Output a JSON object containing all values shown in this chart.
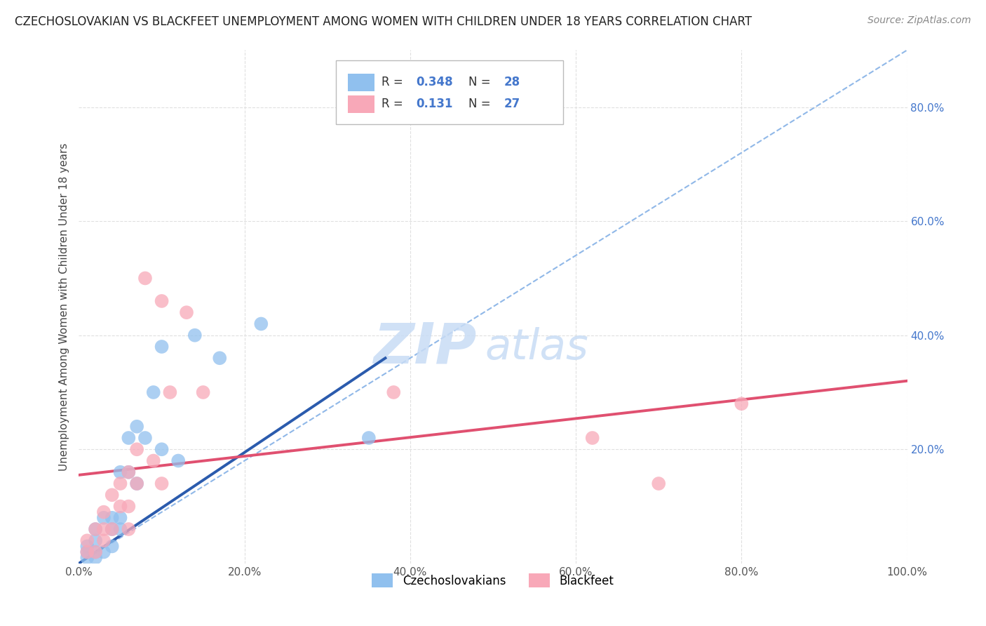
{
  "title": "CZECHOSLOVAKIAN VS BLACKFEET UNEMPLOYMENT AMONG WOMEN WITH CHILDREN UNDER 18 YEARS CORRELATION CHART",
  "source": "Source: ZipAtlas.com",
  "ylabel": "Unemployment Among Women with Children Under 18 years",
  "xlim": [
    0.0,
    1.0
  ],
  "ylim": [
    0.0,
    0.9
  ],
  "xticks": [
    0.0,
    0.2,
    0.4,
    0.6,
    0.8,
    1.0
  ],
  "xticklabels": [
    "0.0%",
    "20.0%",
    "40.0%",
    "60.0%",
    "80.0%",
    "100.0%"
  ],
  "ytick_right_vals": [
    0.2,
    0.4,
    0.6,
    0.8
  ],
  "yticklabels_right": [
    "20.0%",
    "40.0%",
    "60.0%",
    "80.0%"
  ],
  "background_color": "#ffffff",
  "grid_color": "#e0e0e0",
  "grid_style": "--",
  "blue_scatter_color": "#90C0EE",
  "pink_scatter_color": "#F8A8B8",
  "blue_line_color": "#2B5BAD",
  "pink_line_color": "#E05070",
  "diagonal_color": "#90B8E8",
  "R_blue": 0.348,
  "N_blue": 28,
  "R_pink": 0.131,
  "N_pink": 27,
  "legend_label_blue": "Czechoslovakians",
  "legend_label_pink": "Blackfeet",
  "blue_scatter_x": [
    0.01,
    0.01,
    0.01,
    0.02,
    0.02,
    0.02,
    0.02,
    0.03,
    0.03,
    0.04,
    0.04,
    0.04,
    0.05,
    0.05,
    0.05,
    0.06,
    0.06,
    0.07,
    0.07,
    0.08,
    0.09,
    0.1,
    0.1,
    0.12,
    0.14,
    0.17,
    0.22,
    0.35
  ],
  "blue_scatter_y": [
    0.01,
    0.02,
    0.03,
    0.01,
    0.02,
    0.04,
    0.06,
    0.02,
    0.08,
    0.03,
    0.06,
    0.08,
    0.06,
    0.08,
    0.16,
    0.16,
    0.22,
    0.14,
    0.24,
    0.22,
    0.3,
    0.2,
    0.38,
    0.18,
    0.4,
    0.36,
    0.42,
    0.22
  ],
  "pink_scatter_x": [
    0.01,
    0.01,
    0.02,
    0.02,
    0.03,
    0.03,
    0.03,
    0.04,
    0.04,
    0.05,
    0.05,
    0.06,
    0.06,
    0.06,
    0.07,
    0.07,
    0.08,
    0.09,
    0.1,
    0.1,
    0.11,
    0.13,
    0.15,
    0.38,
    0.62,
    0.7,
    0.8
  ],
  "pink_scatter_y": [
    0.02,
    0.04,
    0.02,
    0.06,
    0.04,
    0.06,
    0.09,
    0.06,
    0.12,
    0.1,
    0.14,
    0.06,
    0.1,
    0.16,
    0.14,
    0.2,
    0.5,
    0.18,
    0.14,
    0.46,
    0.3,
    0.44,
    0.3,
    0.3,
    0.22,
    0.14,
    0.28
  ],
  "blue_line_x": [
    0.0,
    0.37
  ],
  "blue_line_y": [
    0.0,
    0.36
  ],
  "pink_line_x": [
    0.0,
    1.0
  ],
  "pink_line_y": [
    0.155,
    0.32
  ],
  "diag_line_x": [
    0.0,
    1.0
  ],
  "diag_line_y": [
    0.0,
    0.9
  ],
  "watermark_zip": "ZIP",
  "watermark_atlas": "atlas",
  "title_fontsize": 12,
  "source_fontsize": 10,
  "axis_label_fontsize": 11,
  "tick_fontsize": 11,
  "legend_fontsize": 12
}
